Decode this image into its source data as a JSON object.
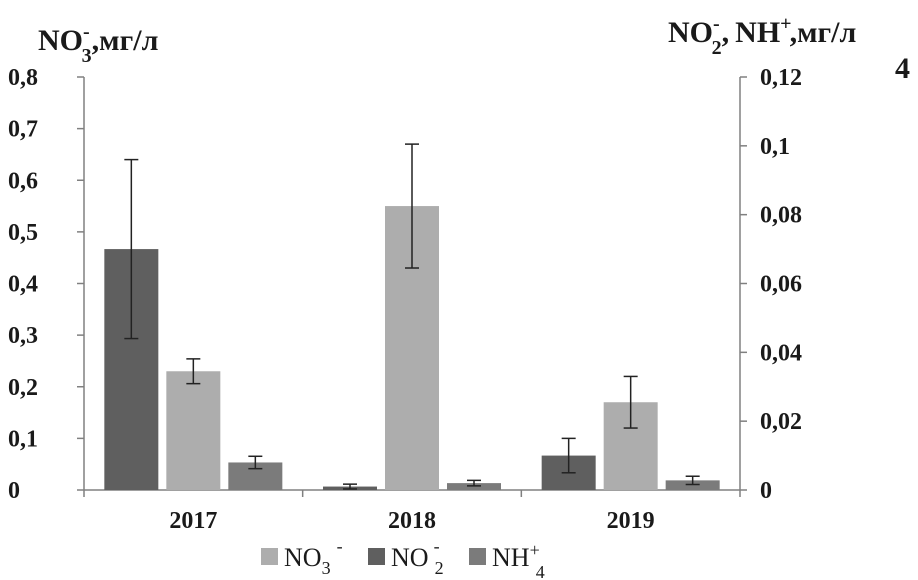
{
  "chart_data": {
    "type": "bar",
    "categories": [
      "2017",
      "2018",
      "2019"
    ],
    "left_axis": {
      "title": {
        "base": "NO",
        "sub": "3",
        "sup": "-",
        "unit": ",мг/л"
      },
      "ylim": [
        0,
        0.8
      ],
      "ticks": [
        0,
        0.1,
        0.2,
        0.3,
        0.4,
        0.5,
        0.6,
        0.7,
        0.8
      ],
      "tick_labels": [
        "0",
        "0,1",
        "0,2",
        "0,3",
        "0,4",
        "0,5",
        "0,6",
        "0,7",
        "0,8"
      ]
    },
    "right_axis": {
      "title": {
        "part1_base": "NO",
        "part1_sup": "-",
        "part1_sub": "2",
        "sep": ",",
        "part2_base": "NH",
        "part2_sup": "+",
        "part2_sub": "4",
        "unit": ",мг/л"
      },
      "ylim": [
        0,
        0.12
      ],
      "ticks": [
        0,
        0.02,
        0.04,
        0.06,
        0.08,
        0.1,
        0.12
      ],
      "tick_labels": [
        "0",
        "0,02",
        "0,04",
        "0,06",
        "0,08",
        "0,1",
        "0,12"
      ]
    },
    "series": [
      {
        "name": "NO2-",
        "axis": "right",
        "color": "#5f5f5f",
        "values": [
          0.07,
          0.001,
          0.01
        ],
        "errors": [
          0.026,
          0.0007,
          0.005
        ]
      },
      {
        "name": "NO3-",
        "axis": "left",
        "color": "#adadad",
        "values": [
          0.23,
          0.55,
          0.17
        ],
        "errors": [
          0.024,
          0.12,
          0.05
        ]
      },
      {
        "name": "NH4+",
        "axis": "right",
        "color": "#7b7b7b",
        "values": [
          0.008,
          0.002,
          0.0028
        ],
        "errors": [
          0.0018,
          0.0008,
          0.0012
        ]
      }
    ],
    "legend": {
      "placement": "bottom",
      "items": [
        {
          "series": "NO3-",
          "color": "#adadad",
          "base": "NO",
          "sub": "3",
          "sup": "-"
        },
        {
          "series": "NO2-",
          "color": "#5f5f5f",
          "base": "NO",
          "sub": "2",
          "sup": "-"
        },
        {
          "series": "NH4+",
          "color": "#7b7b7b",
          "base": "NH",
          "sub": "4",
          "sup": "+"
        }
      ]
    },
    "grid": false
  }
}
